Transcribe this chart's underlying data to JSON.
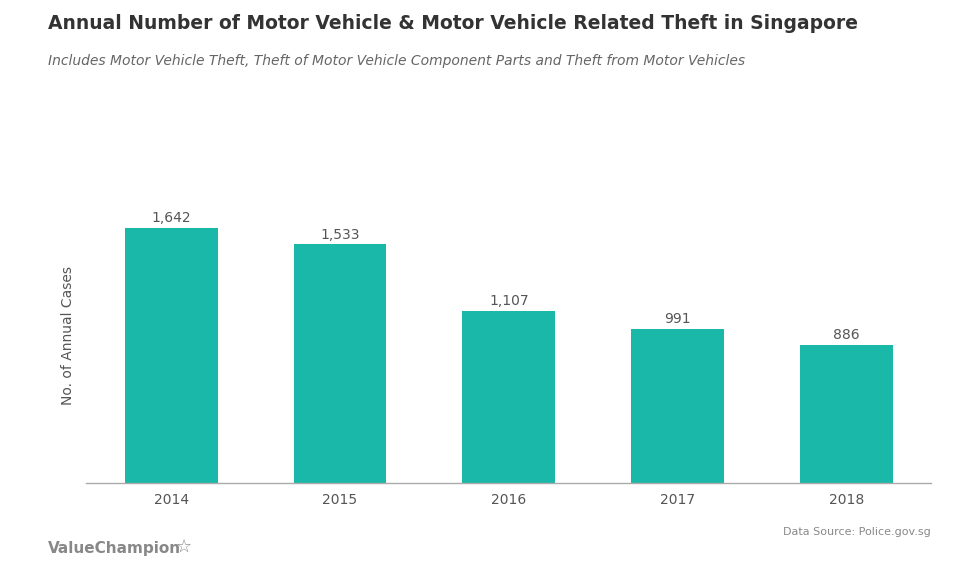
{
  "title": "Annual Number of Motor Vehicle & Motor Vehicle Related Theft in Singapore",
  "subtitle": "Includes Motor Vehicle Theft, Theft of Motor Vehicle Component Parts and Theft from Motor Vehicles",
  "years": [
    "2014",
    "2015",
    "2016",
    "2017",
    "2018"
  ],
  "values": [
    1642,
    1533,
    1107,
    991,
    886
  ],
  "bar_color": "#1ab8a8",
  "ylabel": "No. of Annual Cases",
  "background_color": "#ffffff",
  "text_color": "#555555",
  "label_color": "#555555",
  "data_source": "Data Source: Police.gov.sg",
  "branding": "ValueChampion",
  "ylim": [
    0,
    1900
  ],
  "title_fontsize": 13.5,
  "subtitle_fontsize": 10,
  "label_fontsize": 10,
  "axis_fontsize": 10,
  "bar_width": 0.55
}
